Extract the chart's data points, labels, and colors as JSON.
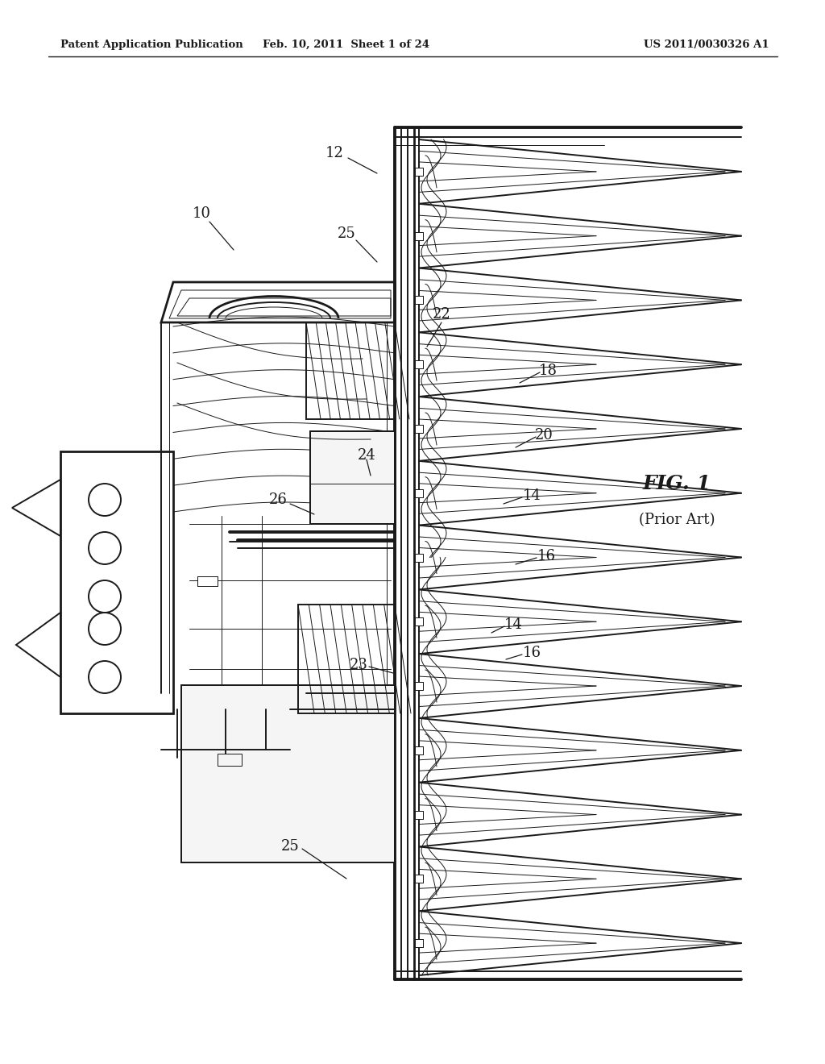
{
  "background_color": "#ffffff",
  "header_text_left": "Patent Application Publication",
  "header_text_mid": "Feb. 10, 2011  Sheet 1 of 24",
  "header_text_right": "US 2011/0030326 A1",
  "fig_label": "FIG. 1",
  "fig_sublabel": "(Prior Art)",
  "line_color": "#1a1a1a",
  "lw_main": 1.4,
  "lw_thin": 0.7,
  "lw_thick": 2.8,
  "lw_med": 2.0
}
